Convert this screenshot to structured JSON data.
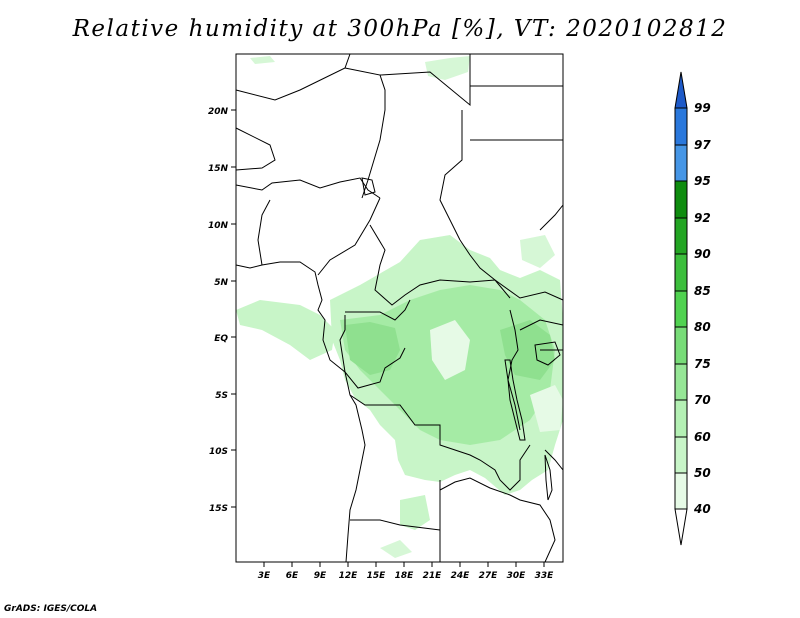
{
  "title": "Relative humidity at 300hPa [%], VT: 2020102812",
  "credit": "GrADS: IGES/COLA",
  "map": {
    "lon_range": [
      0,
      36
    ],
    "lat_range": [
      -20,
      25
    ],
    "lat_ticks": [
      "20N",
      "15N",
      "10N",
      "5N",
      "EQ",
      "5S",
      "10S",
      "15S"
    ],
    "lon_ticks": [
      "3E",
      "6E",
      "9E",
      "12E",
      "15E",
      "18E",
      "21E",
      "24E",
      "27E",
      "30E",
      "33E"
    ]
  },
  "colorbar": {
    "labels": [
      "40",
      "50",
      "60",
      "70",
      "75",
      "80",
      "85",
      "90",
      "92",
      "95",
      "97",
      "99"
    ],
    "colors": [
      "#ffffff",
      "#e6fae6",
      "#c8f5c8",
      "#a5eba5",
      "#82e182",
      "#5fd75f",
      "#46cd46",
      "#32b932",
      "#1ea01e",
      "#0f8c0f",
      "#4696e6",
      "#2a78dc",
      "#1e5ac8"
    ]
  },
  "colors": {
    "light_green": "#c8f5c8",
    "mid_green": "#a0e6a0",
    "dark_green": "#82dc82",
    "border": "#000000"
  }
}
